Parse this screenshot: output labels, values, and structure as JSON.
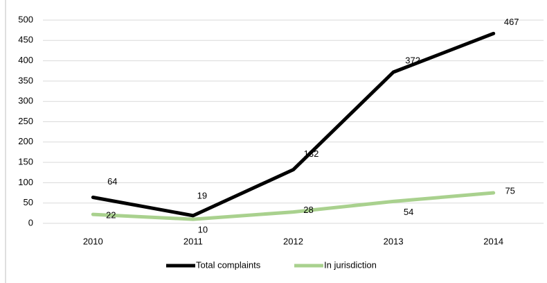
{
  "chart_data": {
    "type": "line",
    "categories": [
      "2010",
      "2011",
      "2012",
      "2013",
      "2014"
    ],
    "series": [
      {
        "name": "Total complaints",
        "color": "#000000",
        "values": [
          64,
          19,
          132,
          372,
          467
        ]
      },
      {
        "name": "In jurisdiction",
        "color": "#a9d18e",
        "values": [
          22,
          10,
          28,
          54,
          75
        ]
      }
    ],
    "ylim": [
      0,
      500
    ],
    "yticks": [
      0,
      50,
      100,
      150,
      200,
      250,
      300,
      350,
      400,
      450,
      500
    ],
    "grid": true,
    "legend": "bottom"
  }
}
